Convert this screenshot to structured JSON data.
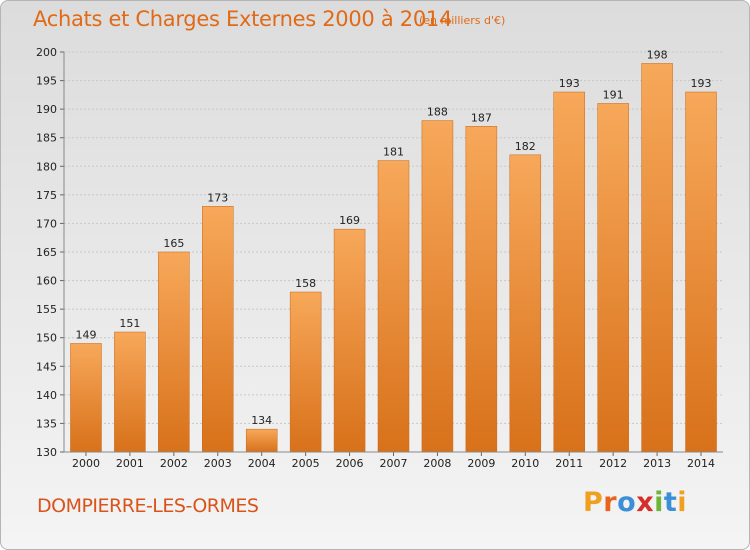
{
  "header": {
    "title": "Achats et Charges Externes 2000 à 2014",
    "subtitle": "(en milliers d'€)"
  },
  "footer": {
    "commune": "DOMPIERRE-LES-ORMES",
    "logo_text": "Proxiti",
    "logo_letters": [
      {
        "ch": "P",
        "color": "#f0a020"
      },
      {
        "ch": "r",
        "color": "#e8641e"
      },
      {
        "ch": "o",
        "color": "#3c8fd6"
      },
      {
        "ch": "x",
        "color": "#d62f2a"
      },
      {
        "ch": "i",
        "color": "#6fb53a"
      },
      {
        "ch": "t",
        "color": "#3c8fd6"
      },
      {
        "ch": "i",
        "color": "#f0a020"
      }
    ]
  },
  "colors": {
    "bar_top": "#f7a85a",
    "bar_bottom": "#d8711a",
    "accent": "#e06a17",
    "grid": "#c8c8c8"
  },
  "chart_data": {
    "type": "bar",
    "categories": [
      "2000",
      "2001",
      "2002",
      "2003",
      "2004",
      "2005",
      "2006",
      "2007",
      "2008",
      "2009",
      "2010",
      "2011",
      "2012",
      "2013",
      "2014"
    ],
    "values": [
      149,
      151,
      165,
      173,
      134,
      158,
      169,
      181,
      188,
      187,
      182,
      193,
      191,
      198,
      193
    ],
    "ylim": [
      130,
      200
    ],
    "yticks": [
      130,
      135,
      140,
      145,
      150,
      155,
      160,
      165,
      170,
      175,
      180,
      185,
      190,
      195,
      200
    ],
    "grid": true,
    "data_labels": true
  }
}
